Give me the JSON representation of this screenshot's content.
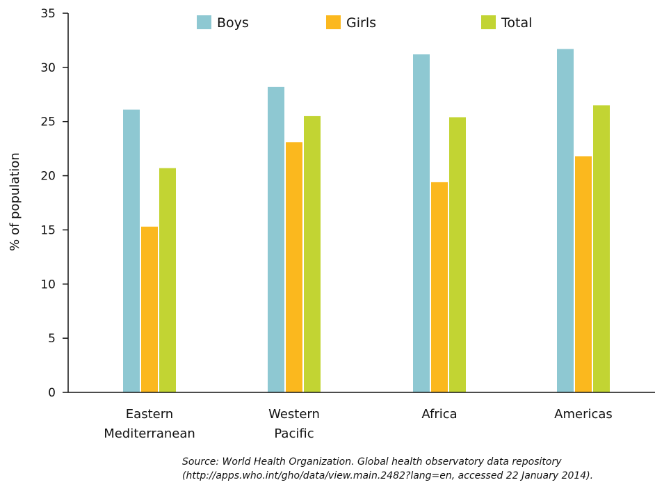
{
  "chart_data": {
    "type": "bar",
    "title": "",
    "xlabel": "",
    "ylabel": "% of population",
    "ylim": [
      0,
      35
    ],
    "yticks": [
      0,
      5,
      10,
      15,
      20,
      25,
      30,
      35
    ],
    "grid": false,
    "legend": "top",
    "categories": [
      [
        "Eastern",
        "Mediterranean"
      ],
      [
        "Western",
        "Pacific"
      ],
      [
        "Africa"
      ],
      [
        "Americas"
      ]
    ],
    "series": [
      {
        "name": "Boys",
        "color": "#8ec8d2",
        "values": [
          26.1,
          28.2,
          31.2,
          31.7
        ]
      },
      {
        "name": "Girls",
        "color": "#fbb81e",
        "values": [
          15.3,
          23.1,
          19.4,
          21.8
        ]
      },
      {
        "name": "Total",
        "color": "#c2d433",
        "values": [
          20.7,
          25.5,
          25.4,
          26.5
        ]
      }
    ]
  },
  "source": {
    "line1": "Source: World Health Organization. Global health observatory data repository",
    "line2": "(http://apps.who.int/gho/data/view.main.2482?lang=en, accessed 22 January 2014)."
  }
}
